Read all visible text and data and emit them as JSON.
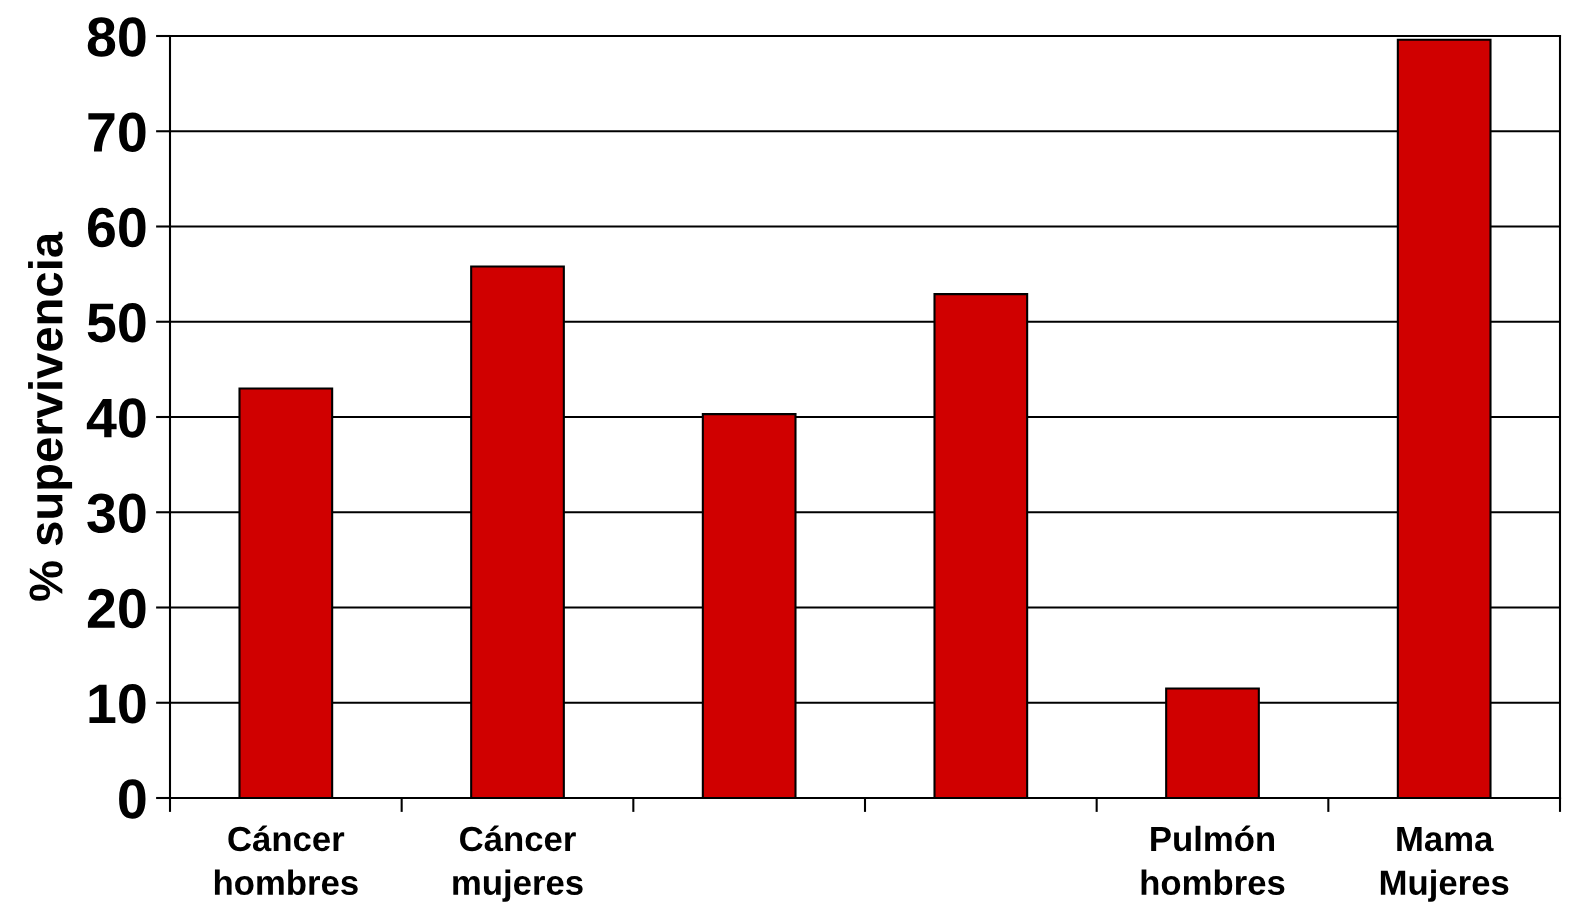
{
  "chart_data": {
    "type": "bar",
    "ylabel": "% supervivencia",
    "categories": [
      "Cáncer\nhombres",
      "Cáncer\nmujeres",
      null,
      null,
      "Pulmón\nhombres",
      "Mama\nMujeres"
    ],
    "values": [
      43,
      55.8,
      40.3,
      52.9,
      11.5,
      79.6
    ],
    "color": "#d00000",
    "ylim": [
      0,
      80
    ],
    "yticks": [
      0,
      10,
      20,
      30,
      40,
      50,
      60,
      70,
      80
    ],
    "grid": "y",
    "legend": false
  }
}
